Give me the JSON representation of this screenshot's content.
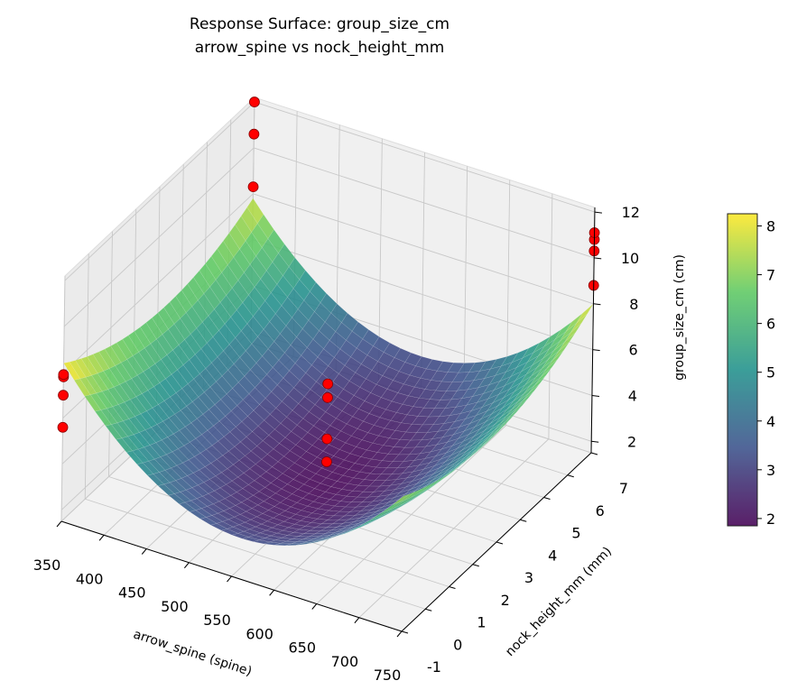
{
  "chart_data": {
    "type": "surface3d",
    "title": "Response Surface: group_size_cm",
    "subtitle": "arrow_spine vs nock_height_mm",
    "xlabel": "arrow_spine (spine)",
    "ylabel": "nock_height_mm (mm)",
    "zlabel": "group_size_cm (cm)",
    "xlim": [
      350,
      750
    ],
    "ylim": [
      -1,
      7
    ],
    "zlim": [
      1.5,
      12.2
    ],
    "x_ticks": [
      350,
      400,
      450,
      500,
      550,
      600,
      650,
      700,
      750
    ],
    "y_ticks": [
      -1,
      0,
      1,
      2,
      3,
      4,
      5,
      6,
      7
    ],
    "z_ticks": [
      2,
      4,
      6,
      8,
      10,
      12
    ],
    "grid": true,
    "colormap": "viridis",
    "surface": {
      "min": 1.9,
      "max": 8.2,
      "center_x": 550,
      "center_y": 3
    },
    "colorbar": {
      "ticks": [
        2,
        3,
        4,
        5,
        6,
        7,
        8
      ],
      "range": [
        1.85,
        8.25
      ],
      "placement": "right"
    },
    "points": [
      {
        "x": 350,
        "y": -1,
        "z": 5.6
      },
      {
        "x": 350,
        "y": -1,
        "z": 7.0
      },
      {
        "x": 350,
        "y": -1,
        "z": 7.8
      },
      {
        "x": 350,
        "y": -1,
        "z": 7.9
      },
      {
        "x": 550,
        "y": 3,
        "z": 2.6
      },
      {
        "x": 550,
        "y": 3,
        "z": 3.6
      },
      {
        "x": 550,
        "y": 3,
        "z": 5.4
      },
      {
        "x": 550,
        "y": 3,
        "z": 6.0
      },
      {
        "x": 350,
        "y": 7,
        "z": 8.3
      },
      {
        "x": 350,
        "y": 7,
        "z": 10.6
      },
      {
        "x": 350,
        "y": 7,
        "z": 12.0
      },
      {
        "x": 750,
        "y": 7,
        "z": 8.8
      },
      {
        "x": 750,
        "y": 7,
        "z": 10.3
      },
      {
        "x": 750,
        "y": 7,
        "z": 10.8
      },
      {
        "x": 750,
        "y": 7,
        "z": 11.1
      }
    ],
    "point_color": "#ff0000"
  }
}
